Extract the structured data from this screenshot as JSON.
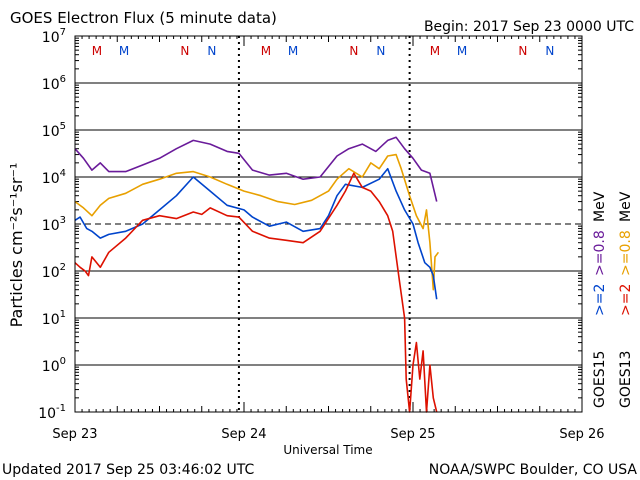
{
  "chart_data": {
    "type": "line",
    "title": "GOES Electron Flux (5 minute data)",
    "begin_label": "Begin: 2017 Sep 23 0000 UTC",
    "xlabel": "Universal Time",
    "ylabel": "Particles cm⁻²s⁻¹sr⁻¹",
    "y_scale": "log",
    "ylim": [
      0.1,
      10000000
    ],
    "xlim_days": [
      0,
      3
    ],
    "x_ticks": [
      {
        "day": 0,
        "label": "Sep 23"
      },
      {
        "day": 1,
        "label": "Sep 24"
      },
      {
        "day": 2,
        "label": "Sep 25"
      },
      {
        "day": 3,
        "label": "Sep 26"
      }
    ],
    "y_ticks": [
      {
        "base": "10",
        "exp": "7",
        "value": 10000000
      },
      {
        "base": "10",
        "exp": "6",
        "value": 1000000
      },
      {
        "base": "10",
        "exp": "5",
        "value": 100000
      },
      {
        "base": "10",
        "exp": "4",
        "value": 10000
      },
      {
        "base": "10",
        "exp": "3",
        "value": 1000
      },
      {
        "base": "10",
        "exp": "2",
        "value": 100
      },
      {
        "base": "10",
        "exp": "1",
        "value": 10
      },
      {
        "base": "10",
        "exp": "0",
        "value": 1
      },
      {
        "base": "10",
        "exp": "-1",
        "value": 0.1
      }
    ],
    "threshold": {
      "value": 1000,
      "style": "dashed"
    },
    "orbit_markers": [
      {
        "label": "M",
        "day": 0.13,
        "color": "#cc0000"
      },
      {
        "label": "M",
        "day": 0.29,
        "color": "#0044cc"
      },
      {
        "label": "N",
        "day": 0.65,
        "color": "#cc0000"
      },
      {
        "label": "N",
        "day": 0.81,
        "color": "#0044cc"
      },
      {
        "label": "M",
        "day": 1.13,
        "color": "#cc0000"
      },
      {
        "label": "M",
        "day": 1.29,
        "color": "#0044cc"
      },
      {
        "label": "N",
        "day": 1.65,
        "color": "#cc0000"
      },
      {
        "label": "N",
        "day": 1.81,
        "color": "#0044cc"
      },
      {
        "label": "M",
        "day": 2.13,
        "color": "#cc0000"
      },
      {
        "label": "M",
        "day": 2.29,
        "color": "#0044cc"
      },
      {
        "label": "N",
        "day": 2.65,
        "color": "#cc0000"
      },
      {
        "label": "N",
        "day": 2.81,
        "color": "#0044cc"
      }
    ],
    "dotted_markers_days": [
      0.97,
      1.98
    ],
    "legend": {
      "goes15_label": "GOES15",
      "goes13_label": "GOES13",
      "entries": [
        {
          "label": ">=2",
          "color": "#0044cc",
          "column": "goes15"
        },
        {
          "label": ">=0.8",
          "color": "#6a1b9a",
          "column": "goes15"
        },
        {
          "label": "MeV",
          "color": "#000000",
          "column": "goes15"
        },
        {
          "label": ">=2",
          "color": "#dd1100",
          "column": "goes13"
        },
        {
          "label": ">=0.8",
          "color": "#e8a000",
          "column": "goes13"
        },
        {
          "label": "MeV",
          "color": "#000000",
          "column": "goes13"
        }
      ]
    },
    "series": [
      {
        "name": "GOES15 >=0.8 MeV",
        "color": "#6a1b9a",
        "points": [
          [
            0,
            40000
          ],
          [
            0.05,
            25000
          ],
          [
            0.1,
            14000
          ],
          [
            0.15,
            20000
          ],
          [
            0.2,
            13000
          ],
          [
            0.3,
            13000
          ],
          [
            0.4,
            18000
          ],
          [
            0.5,
            25000
          ],
          [
            0.6,
            40000
          ],
          [
            0.7,
            60000
          ],
          [
            0.8,
            50000
          ],
          [
            0.9,
            35000
          ],
          [
            0.97,
            32000
          ],
          [
            1.05,
            14000
          ],
          [
            1.15,
            11000
          ],
          [
            1.25,
            12000
          ],
          [
            1.35,
            9000
          ],
          [
            1.45,
            10000
          ],
          [
            1.55,
            28000
          ],
          [
            1.62,
            40000
          ],
          [
            1.7,
            50000
          ],
          [
            1.78,
            35000
          ],
          [
            1.85,
            60000
          ],
          [
            1.9,
            70000
          ],
          [
            1.95,
            40000
          ],
          [
            2.0,
            25000
          ],
          [
            2.05,
            14000
          ],
          [
            2.1,
            12000
          ],
          [
            2.12,
            6000
          ],
          [
            2.14,
            3000
          ]
        ]
      },
      {
        "name": "GOES13 >=0.8 MeV",
        "color": "#e8a000",
        "points": [
          [
            0,
            3000
          ],
          [
            0.05,
            2200
          ],
          [
            0.1,
            1500
          ],
          [
            0.15,
            2500
          ],
          [
            0.2,
            3500
          ],
          [
            0.3,
            4500
          ],
          [
            0.4,
            7000
          ],
          [
            0.5,
            9000
          ],
          [
            0.6,
            12000
          ],
          [
            0.7,
            13000
          ],
          [
            0.8,
            10000
          ],
          [
            0.9,
            7000
          ],
          [
            1.0,
            5000
          ],
          [
            1.1,
            4000
          ],
          [
            1.2,
            3000
          ],
          [
            1.3,
            2600
          ],
          [
            1.4,
            3200
          ],
          [
            1.5,
            5000
          ],
          [
            1.55,
            9000
          ],
          [
            1.62,
            15000
          ],
          [
            1.7,
            10000
          ],
          [
            1.75,
            20000
          ],
          [
            1.8,
            15000
          ],
          [
            1.85,
            28000
          ],
          [
            1.9,
            30000
          ],
          [
            1.93,
            15000
          ],
          [
            1.98,
            4000
          ],
          [
            2.02,
            1500
          ],
          [
            2.06,
            800
          ],
          [
            2.08,
            2000
          ],
          [
            2.1,
            400
          ],
          [
            2.12,
            40
          ],
          [
            2.13,
            200
          ],
          [
            2.15,
            250
          ]
        ]
      },
      {
        "name": "GOES15 >=2 MeV",
        "color": "#0044cc",
        "points": [
          [
            0,
            1200
          ],
          [
            0.03,
            1400
          ],
          [
            0.07,
            800
          ],
          [
            0.1,
            700
          ],
          [
            0.15,
            500
          ],
          [
            0.2,
            600
          ],
          [
            0.3,
            700
          ],
          [
            0.4,
            1000
          ],
          [
            0.5,
            2000
          ],
          [
            0.6,
            4000
          ],
          [
            0.7,
            10000
          ],
          [
            0.8,
            5000
          ],
          [
            0.9,
            2500
          ],
          [
            1.0,
            2000
          ],
          [
            1.05,
            1400
          ],
          [
            1.15,
            900
          ],
          [
            1.25,
            1100
          ],
          [
            1.35,
            700
          ],
          [
            1.45,
            800
          ],
          [
            1.5,
            1500
          ],
          [
            1.55,
            4000
          ],
          [
            1.6,
            7000
          ],
          [
            1.7,
            6000
          ],
          [
            1.8,
            9000
          ],
          [
            1.85,
            15000
          ],
          [
            1.9,
            5000
          ],
          [
            1.95,
            2000
          ],
          [
            2.0,
            1000
          ],
          [
            2.03,
            400
          ],
          [
            2.07,
            150
          ],
          [
            2.1,
            120
          ],
          [
            2.12,
            80
          ],
          [
            2.14,
            25
          ]
        ]
      },
      {
        "name": "GOES13 >=2 MeV",
        "color": "#dd1100",
        "points": [
          [
            0,
            150
          ],
          [
            0.03,
            120
          ],
          [
            0.06,
            100
          ],
          [
            0.08,
            80
          ],
          [
            0.1,
            200
          ],
          [
            0.15,
            120
          ],
          [
            0.2,
            250
          ],
          [
            0.3,
            500
          ],
          [
            0.4,
            1200
          ],
          [
            0.5,
            1500
          ],
          [
            0.6,
            1300
          ],
          [
            0.7,
            1800
          ],
          [
            0.75,
            1600
          ],
          [
            0.8,
            2200
          ],
          [
            0.9,
            1500
          ],
          [
            0.97,
            1400
          ],
          [
            1.05,
            700
          ],
          [
            1.15,
            500
          ],
          [
            1.25,
            450
          ],
          [
            1.35,
            400
          ],
          [
            1.45,
            700
          ],
          [
            1.55,
            2500
          ],
          [
            1.6,
            5000
          ],
          [
            1.65,
            12000
          ],
          [
            1.7,
            6000
          ],
          [
            1.75,
            5000
          ],
          [
            1.8,
            3000
          ],
          [
            1.85,
            1500
          ],
          [
            1.88,
            700
          ],
          [
            1.92,
            60
          ],
          [
            1.95,
            10
          ],
          [
            1.96,
            0.5
          ],
          [
            1.98,
            0.1
          ],
          [
            2.0,
            1
          ],
          [
            2.02,
            3
          ],
          [
            2.04,
            0.5
          ],
          [
            2.06,
            2
          ],
          [
            2.08,
            0.1
          ],
          [
            2.1,
            1
          ],
          [
            2.12,
            0.2
          ],
          [
            2.14,
            0.1
          ]
        ]
      }
    ]
  },
  "footer": {
    "updated": "Updated 2017 Sep 25 03:46:02 UTC",
    "credit": "NOAA/SWPC Boulder, CO USA"
  }
}
